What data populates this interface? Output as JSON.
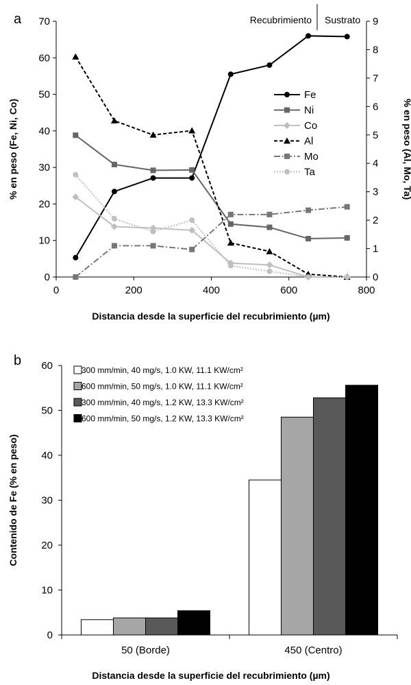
{
  "chart_data": [
    {
      "panel": "a",
      "type": "line",
      "xlabel": "Distancia desde la superficie del recubrimiento  (µm)",
      "ylabel_left": "% en peso (Fe, Ni, Co)",
      "ylabel_right": "% en peso (Al, Mo, Ta)",
      "xlim": [
        0,
        800
      ],
      "ylim_left": [
        0,
        70
      ],
      "ylim_right": [
        0,
        9
      ],
      "x_ticks": [
        "0",
        "200",
        "400",
        "600",
        "800"
      ],
      "y_left_ticks": [
        "0",
        "10",
        "20",
        "30",
        "40",
        "50",
        "60",
        "70"
      ],
      "y_right_ticks": [
        "0",
        "1",
        "2",
        "3",
        "4",
        "5",
        "6",
        "7",
        "8",
        "9"
      ],
      "region_labels": [
        "Recubrimiento",
        "Sustrato"
      ],
      "legend_position": "right",
      "grid": false,
      "x": [
        50,
        150,
        250,
        350,
        450,
        550,
        650,
        750
      ],
      "series": [
        {
          "name": "Fe",
          "axis": "left",
          "color": "#000000",
          "dash": "none",
          "marker": "circle",
          "values": [
            5.3,
            23.4,
            27.1,
            27.1,
            55.5,
            58.0,
            66.0,
            65.8
          ]
        },
        {
          "name": "Ni",
          "axis": "left",
          "color": "#666666",
          "dash": "none",
          "marker": "square",
          "values": [
            38.8,
            30.8,
            29.2,
            29.3,
            14.5,
            13.6,
            10.5,
            10.7
          ]
        },
        {
          "name": "Co",
          "axis": "left",
          "color": "#bfbfbf",
          "dash": "none",
          "marker": "diamond",
          "values": [
            21.9,
            13.8,
            13.4,
            12.8,
            3.8,
            3.3,
            0.0,
            0.0
          ]
        },
        {
          "name": "Al",
          "axis": "right",
          "color": "#000000",
          "dash": "5,3",
          "marker": "triangle",
          "values": [
            7.75,
            5.5,
            5.0,
            5.15,
            1.2,
            0.9,
            0.1,
            0.0
          ]
        },
        {
          "name": "Mo",
          "axis": "right",
          "color": "#777777",
          "dash": "9,3,2,3",
          "marker": "square",
          "values": [
            0.0,
            1.1,
            1.1,
            0.97,
            2.2,
            2.2,
            2.35,
            2.47
          ]
        },
        {
          "name": "Ta",
          "axis": "right",
          "color": "#c0c0c0",
          "dash": "2,2",
          "marker": "circle",
          "values": [
            3.6,
            2.05,
            1.6,
            2.0,
            0.4,
            0.2,
            0.0,
            0.0
          ]
        }
      ]
    },
    {
      "panel": "b",
      "type": "bar",
      "xlabel": "Distancia desde la superficie del recubrimiento (µm)",
      "ylabel": "Contenido de Fe (% en peso)",
      "ylim": [
        0,
        60
      ],
      "y_ticks": [
        "0",
        "10",
        "20",
        "30",
        "40",
        "50",
        "60"
      ],
      "categories": [
        "50 (Borde)",
        "450 (Centro)"
      ],
      "legend_position": "top-left",
      "grid": false,
      "series": [
        {
          "name": "300 mm/min, 40 mg/s, 1.0 KW, 11.1 KW/cm²",
          "color": "#ffffff",
          "values": [
            3.4,
            34.5
          ]
        },
        {
          "name": "600 mm/min, 50 mg/s, 1.0 KW, 11.1 KW/cm²",
          "color": "#a6a6a6",
          "values": [
            3.8,
            48.5
          ]
        },
        {
          "name": "300 mm/min, 40 mg/s, 1.2 KW, 13.3 KW/cm²",
          "color": "#595959",
          "values": [
            3.8,
            52.8
          ]
        },
        {
          "name": "600 mm/min, 50 mg/s, 1.2 KW, 13.3 KW/cm²",
          "color": "#000000",
          "values": [
            5.4,
            55.6
          ]
        }
      ]
    }
  ]
}
